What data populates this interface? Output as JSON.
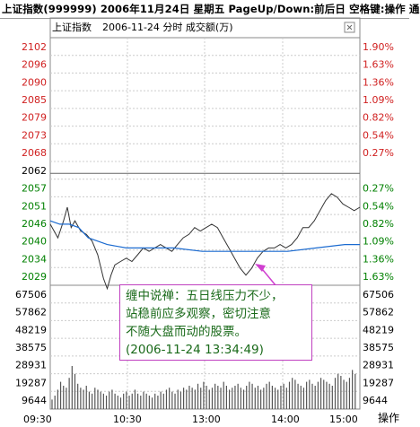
{
  "window_title": "上证指数(999999) 2006年11月24日 星期五 PageUp/Down:前后日 空格键:操作 通",
  "panel": {
    "index_name": "上证指数",
    "date_label": "2006-11-24 分时 成交额(万)",
    "close_icon": "close-icon"
  },
  "price_axis": {
    "left_labels": [
      "2102",
      "2096",
      "2090",
      "2085",
      "2079",
      "2073",
      "2068",
      "2062",
      "2057",
      "2051",
      "2046",
      "2040",
      "2034",
      "2029"
    ],
    "right_labels": [
      "1.90%",
      "1.63%",
      "1.36%",
      "1.09%",
      "0.82%",
      "0.54%",
      "0.27%",
      "",
      "0.27%",
      "0.54%",
      "0.82%",
      "1.09%",
      "1.36%",
      "1.63%"
    ],
    "prev_close": "2062",
    "colors": {
      "up": "#d02020",
      "down": "#008000",
      "flat": "#000000"
    }
  },
  "volume_axis": {
    "left_labels": [
      "67506",
      "57862",
      "48219",
      "38575",
      "28931",
      "19287",
      "9644"
    ],
    "right_labels": [
      "67506",
      "57862",
      "48219",
      "38575",
      "28931",
      "19287",
      "9644"
    ]
  },
  "time_axis": {
    "labels": [
      "09:30",
      "10:30",
      "13:00",
      "14:00",
      "15:00"
    ],
    "op_button": "操作"
  },
  "annotation": {
    "line1": "缠中说禅：五日线压力不少，",
    "line2": "站稳前应多观察，密切注意",
    "line3": "不随大盘而动的股票。",
    "line4": "(2006-11-24 13:34:49)",
    "border_color": "#c040c0",
    "text_color": "#1a6a1a"
  },
  "chart_data": {
    "type": "line",
    "series": [],
    "y_range": [
      2029,
      2102
    ],
    "prev_close": 2062,
    "price_points": [
      [
        0,
        2047
      ],
      [
        8,
        2043
      ],
      [
        14,
        2048
      ],
      [
        18,
        2052
      ],
      [
        22,
        2046
      ],
      [
        26,
        2048
      ],
      [
        32,
        2045
      ],
      [
        38,
        2044
      ],
      [
        44,
        2042
      ],
      [
        50,
        2038
      ],
      [
        56,
        2031
      ],
      [
        60,
        2028
      ],
      [
        64,
        2032
      ],
      [
        68,
        2035
      ],
      [
        74,
        2036
      ],
      [
        80,
        2037
      ],
      [
        86,
        2036
      ],
      [
        92,
        2038
      ],
      [
        98,
        2040
      ],
      [
        104,
        2039
      ],
      [
        110,
        2040
      ],
      [
        116,
        2041
      ],
      [
        122,
        2040
      ],
      [
        128,
        2039
      ],
      [
        134,
        2041
      ],
      [
        140,
        2043
      ],
      [
        146,
        2044
      ],
      [
        152,
        2046
      ],
      [
        158,
        2045
      ],
      [
        164,
        2046
      ],
      [
        170,
        2047
      ],
      [
        176,
        2046
      ],
      [
        182,
        2043
      ],
      [
        188,
        2040
      ],
      [
        194,
        2037
      ],
      [
        200,
        2034
      ],
      [
        206,
        2032
      ],
      [
        212,
        2034
      ],
      [
        218,
        2037
      ],
      [
        224,
        2039
      ],
      [
        230,
        2040
      ],
      [
        236,
        2040
      ],
      [
        242,
        2041
      ],
      [
        248,
        2040
      ],
      [
        254,
        2041
      ],
      [
        260,
        2043
      ],
      [
        266,
        2046
      ],
      [
        272,
        2046
      ],
      [
        278,
        2048
      ],
      [
        284,
        2051
      ],
      [
        290,
        2054
      ],
      [
        296,
        2056
      ],
      [
        302,
        2055
      ],
      [
        308,
        2053
      ],
      [
        314,
        2052
      ],
      [
        320,
        2051
      ],
      [
        326,
        2052
      ]
    ],
    "avg_points": [
      [
        0,
        2048
      ],
      [
        10,
        2047
      ],
      [
        20,
        2047
      ],
      [
        30,
        2046
      ],
      [
        40,
        2043
      ],
      [
        50,
        2042
      ],
      [
        60,
        2041
      ],
      [
        80,
        2040
      ],
      [
        100,
        2040
      ],
      [
        130,
        2040
      ],
      [
        160,
        2039
      ],
      [
        190,
        2039
      ],
      [
        220,
        2039
      ],
      [
        250,
        2039
      ],
      [
        280,
        2040
      ],
      [
        310,
        2041
      ],
      [
        326,
        2041
      ]
    ]
  }
}
